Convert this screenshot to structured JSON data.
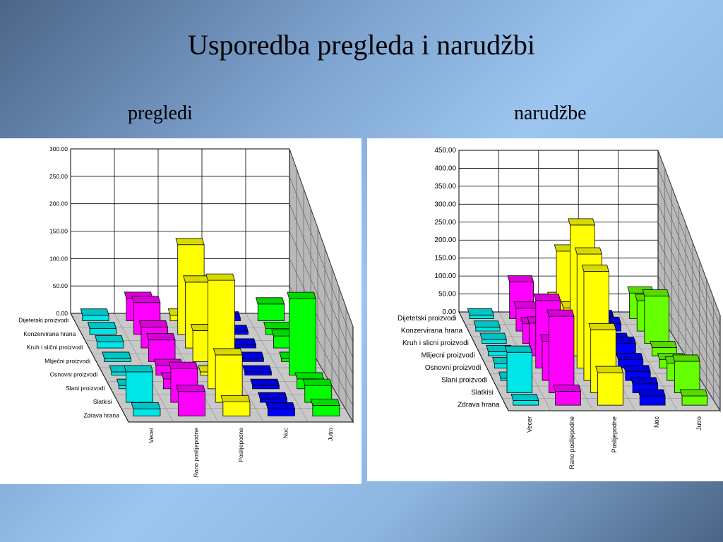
{
  "slide": {
    "title": "Usporedba pregleda i narudžbi",
    "left_caption": "pregledi",
    "right_caption": "narudžbe"
  },
  "chart_data": [
    {
      "type": "bar",
      "style": "3d",
      "title": "",
      "categories": [
        "Vecer",
        "Rano poslijepodne",
        "Poslijepodne",
        "Noc",
        "Jutro"
      ],
      "series_labels": [
        "Dijetetski proizvodi",
        "Konzervirana hrana",
        "Kruh i slični proizvodi",
        "Mliječni proizvodi",
        "Osnovni proizvodi",
        "Slani proizvodi",
        "Slatkisi",
        "Zdrava hrana"
      ],
      "ytick_labels": [
        "300.00",
        "250.00",
        "200.00",
        "150.00",
        "100.00",
        "50.00",
        "0.00"
      ],
      "ylim": [
        0,
        300
      ],
      "colors": [
        "#00e5e5",
        "#ff00ff",
        "#ffff00",
        "#0000ff",
        "#00ff00"
      ],
      "values": [
        [
          10,
          10,
          10,
          5,
          5,
          5,
          45,
          10
        ],
        [
          40,
          55,
          35,
          35,
          15,
          15,
          50,
          35
        ],
        [
          10,
          155,
          110,
          50,
          5,
          165,
          70,
          20
        ],
        [
          5,
          5,
          5,
          5,
          5,
          5,
          5,
          10
        ],
        [
          30,
          10,
          20,
          5,
          120,
          15,
          25,
          15
        ]
      ]
    },
    {
      "type": "bar",
      "style": "3d",
      "title": "",
      "categories": [
        "Vecer",
        "Rano poslijepodne",
        "Poslijepodne",
        "Noc",
        "Jutro"
      ],
      "series_labels": [
        "Dijetetski proizvodi",
        "Konzervirana hrana",
        "Kruh i slicni proizvodi",
        "Mlijecni proizvodi",
        "Osnovni proizvodi",
        "Slani proizvodi",
        "Slatkisi",
        "Zdrava hrana"
      ],
      "ytick_labels": [
        "450.00",
        "400.00",
        "350.00",
        "300.00",
        "250.00",
        "200.00",
        "150.00",
        "100.00",
        "50.00",
        "0.00"
      ],
      "ylim": [
        0,
        450
      ],
      "colors": [
        "#00e5e5",
        "#ff00ff",
        "#ffff00",
        "#0000ff",
        "#66ff00"
      ],
      "values": [
        [
          10,
          10,
          10,
          10,
          10,
          5,
          90,
          10
        ],
        [
          100,
          60,
          50,
          80,
          160,
          90,
          170,
          30
        ],
        [
          55,
          210,
          90,
          320,
          270,
          250,
          140,
          70
        ],
        [
          5,
          20,
          10,
          30,
          20,
          20,
          20,
          20
        ],
        [
          70,
          80,
          120,
          20,
          20,
          40,
          70,
          20
        ]
      ]
    }
  ]
}
